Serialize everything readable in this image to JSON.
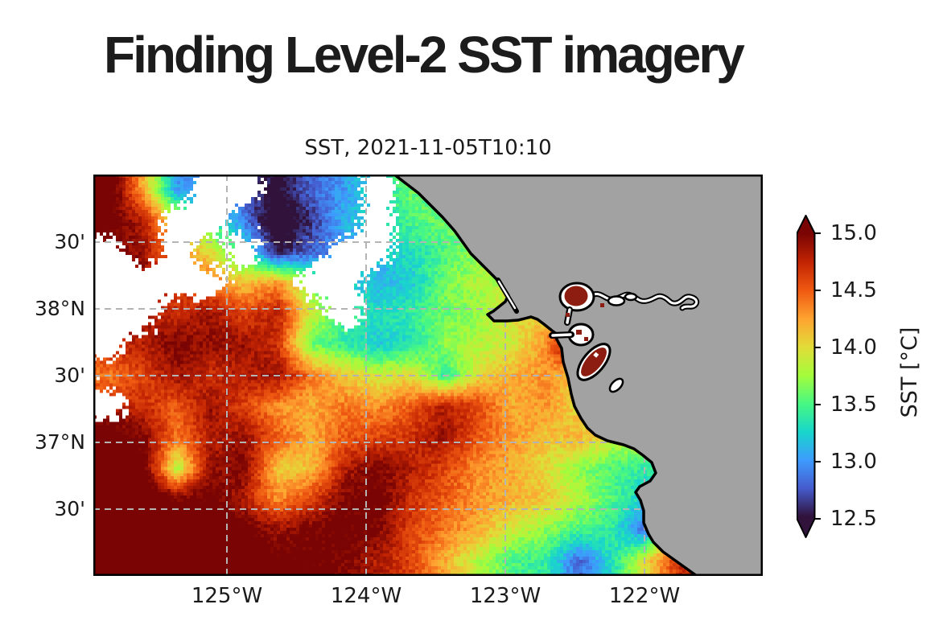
{
  "page": {
    "heading": "Finding Level-2 SST imagery",
    "background": "#ffffff"
  },
  "chart_data": {
    "type": "heatmap",
    "title": "SST, 2021-11-05T10:10",
    "x_axis": {
      "tick_labels": [
        "125°W",
        "124°W",
        "123°W",
        "122°W"
      ],
      "lons": [
        -125,
        -124,
        -123,
        -122
      ]
    },
    "y_axis": {
      "tick_labels": [
        "30'",
        "38°N",
        "30'",
        "37°N",
        "30'"
      ],
      "lats": [
        38.5,
        38.0,
        37.5,
        37.0,
        36.5
      ]
    },
    "extent": {
      "lon_min": -126.0,
      "lon_max": -121.1,
      "lat_min": 36.0,
      "lat_max": 39.0
    },
    "colorbar": {
      "label": "SST [°C]",
      "ticks": [
        "15.0",
        "14.5",
        "14.0",
        "13.5",
        "13.0",
        "12.5"
      ],
      "vmin": 12.5,
      "vmax": 15.0,
      "extend": "both"
    },
    "colormap": {
      "name": "turbo",
      "stops": [
        [
          0.0,
          "#30123b"
        ],
        [
          0.1,
          "#455bcd"
        ],
        [
          0.2,
          "#3e9bfe"
        ],
        [
          0.3,
          "#18d6cb"
        ],
        [
          0.4,
          "#48f882"
        ],
        [
          0.5,
          "#a4fc3b"
        ],
        [
          0.6,
          "#e2dc38"
        ],
        [
          0.7,
          "#fea331"
        ],
        [
          0.8,
          "#ef5911"
        ],
        [
          0.9,
          "#c22403"
        ],
        [
          1.0,
          "#7a0403"
        ]
      ]
    },
    "map_colors": {
      "land": "#a2a2a2",
      "coastline": "#000000",
      "no_data_cloud": "#ffffff",
      "gridline": "#b4b4b4",
      "bay_water_hot": "#8c1d10"
    },
    "gridlines": {
      "style": "dashed",
      "lon": [
        -125,
        -124,
        -123,
        -122
      ],
      "lat": [
        38.5,
        38.0,
        37.5,
        37.0,
        36.5
      ]
    },
    "sst_grid": {
      "nx": 20,
      "ny": 13,
      "units": "degC",
      "note": "null = cloud / no-data (white)",
      "values": [
        [
          15.2,
          14.2,
          13.0,
          null,
          null,
          12.4,
          12.8,
          13.0,
          null,
          13.6,
          13.5,
          13.5,
          13.5,
          13.5,
          13.5,
          13.5,
          13.5,
          13.5,
          13.5,
          13.5
        ],
        [
          15.1,
          14.8,
          null,
          null,
          12.9,
          12.2,
          12.6,
          13.1,
          null,
          13.5,
          13.6,
          13.6,
          13.6,
          13.6,
          13.6,
          13.6,
          13.6,
          13.6,
          13.6,
          13.6
        ],
        [
          null,
          14.9,
          null,
          14.0,
          null,
          12.5,
          12.8,
          null,
          null,
          13.3,
          13.5,
          13.7,
          13.7,
          13.7,
          13.7,
          13.7,
          13.7,
          13.7,
          13.7,
          13.7
        ],
        [
          null,
          null,
          null,
          null,
          14.1,
          14.3,
          null,
          null,
          13.1,
          13.2,
          13.6,
          13.8,
          13.8,
          13.9,
          15.2,
          14.0,
          14.0,
          14.0,
          14.0,
          14.0
        ],
        [
          null,
          null,
          14.7,
          14.9,
          14.6,
          14.8,
          13.9,
          null,
          13.3,
          13.4,
          13.6,
          13.7,
          14.0,
          14.1,
          14.2,
          14.2,
          14.2,
          14.2,
          14.2,
          14.2
        ],
        [
          null,
          14.8,
          15.0,
          14.9,
          14.9,
          14.7,
          13.6,
          13.4,
          13.2,
          13.3,
          13.7,
          13.8,
          13.9,
          14.3,
          15.3,
          15.3,
          14.5,
          14.5,
          14.5,
          14.5
        ],
        [
          14.4,
          14.6,
          14.9,
          14.7,
          14.8,
          14.9,
          14.4,
          14.1,
          13.9,
          14.0,
          13.4,
          14.0,
          14.2,
          14.3,
          14.1,
          15.2,
          14.5,
          14.5,
          14.5,
          14.5
        ],
        [
          null,
          14.7,
          14.5,
          14.9,
          14.6,
          14.3,
          14.2,
          14.4,
          14.3,
          14.5,
          14.8,
          14.6,
          14.2,
          14.3,
          14.0,
          14.0,
          14.0,
          14.0,
          14.0,
          14.0
        ],
        [
          15.2,
          15.0,
          14.4,
          14.8,
          14.9,
          14.5,
          14.2,
          14.5,
          14.6,
          14.7,
          14.9,
          14.5,
          14.3,
          14.1,
          14.2,
          13.9,
          13.8,
          13.8,
          13.8,
          13.8
        ],
        [
          15.3,
          15.1,
          13.8,
          14.9,
          15.0,
          14.1,
          14.1,
          14.8,
          15.0,
          14.8,
          14.6,
          14.3,
          14.2,
          14.0,
          13.7,
          13.5,
          13.4,
          13.4,
          13.4,
          13.4
        ],
        [
          15.4,
          15.3,
          15.0,
          15.1,
          14.8,
          14.3,
          14.6,
          15.0,
          15.1,
          14.7,
          14.5,
          14.3,
          14.2,
          14.1,
          13.8,
          13.5,
          13.2,
          13.2,
          13.2,
          13.2
        ],
        [
          15.4,
          15.3,
          15.2,
          15.2,
          15.1,
          14.9,
          15.0,
          15.1,
          15.0,
          14.6,
          14.4,
          14.2,
          13.9,
          13.7,
          13.5,
          13.4,
          12.8,
          14.6,
          14.6,
          14.6
        ],
        [
          15.5,
          15.4,
          15.3,
          15.3,
          15.2,
          15.1,
          15.1,
          15.0,
          14.8,
          14.6,
          14.2,
          13.8,
          13.5,
          13.4,
          12.8,
          13.3,
          14.0,
          14.7,
          14.7,
          14.7
        ]
      ]
    }
  }
}
